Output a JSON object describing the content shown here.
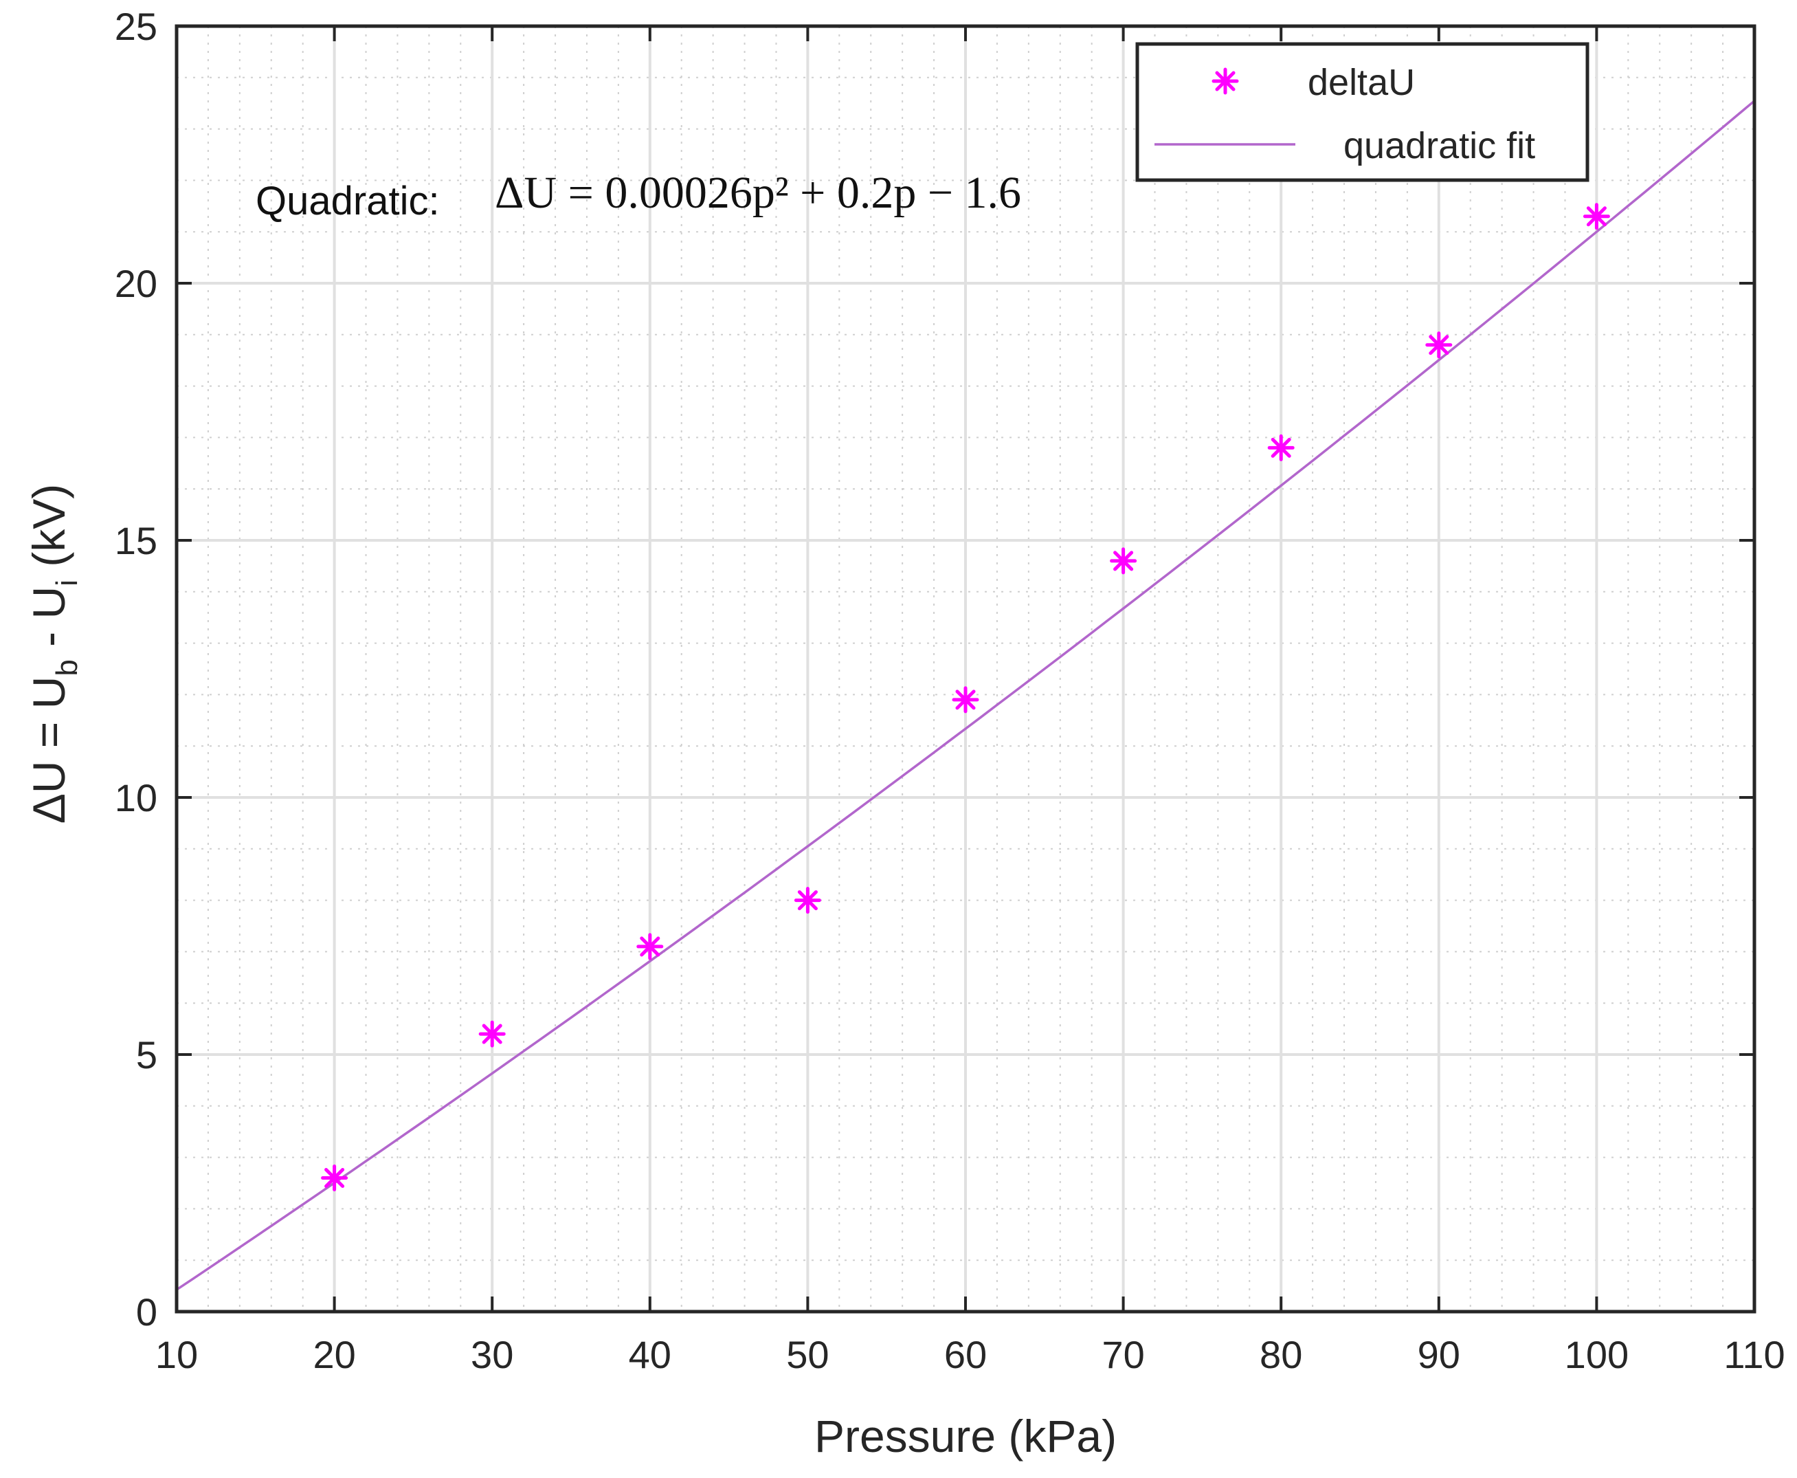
{
  "chart_data": {
    "type": "scatter",
    "title": "",
    "xlabel": "Pressure (kPa)",
    "ylabel_parts": [
      "ΔU = U",
      "b",
      " - U",
      "i",
      " (kV)"
    ],
    "xlim": [
      10,
      110
    ],
    "ylim": [
      0,
      25
    ],
    "xticks": [
      10,
      20,
      30,
      40,
      50,
      60,
      70,
      80,
      90,
      100,
      110
    ],
    "yticks": [
      0,
      5,
      10,
      15,
      20,
      25
    ],
    "x_minor_step": 2,
    "y_minor_step": 1,
    "grid": true,
    "legend_position": "top-right",
    "series": [
      {
        "name": "deltaU",
        "kind": "markers",
        "marker": "*",
        "color": "#ff00ff",
        "x": [
          20,
          30,
          40,
          50,
          60,
          70,
          80,
          90,
          100
        ],
        "y": [
          2.6,
          5.4,
          7.1,
          8.0,
          11.9,
          14.6,
          16.8,
          18.8,
          21.3
        ]
      },
      {
        "name": "quadratic fit",
        "kind": "line",
        "color": "#b266cc",
        "coefficients": {
          "a": 0.00026,
          "b": 0.2,
          "c": -1.6
        }
      }
    ],
    "annotation": {
      "prefix": "Quadratic:",
      "equation": "ΔU = 0.00026p² + 0.2p − 1.6",
      "at": {
        "x": 15,
        "y": 21.6
      }
    }
  }
}
